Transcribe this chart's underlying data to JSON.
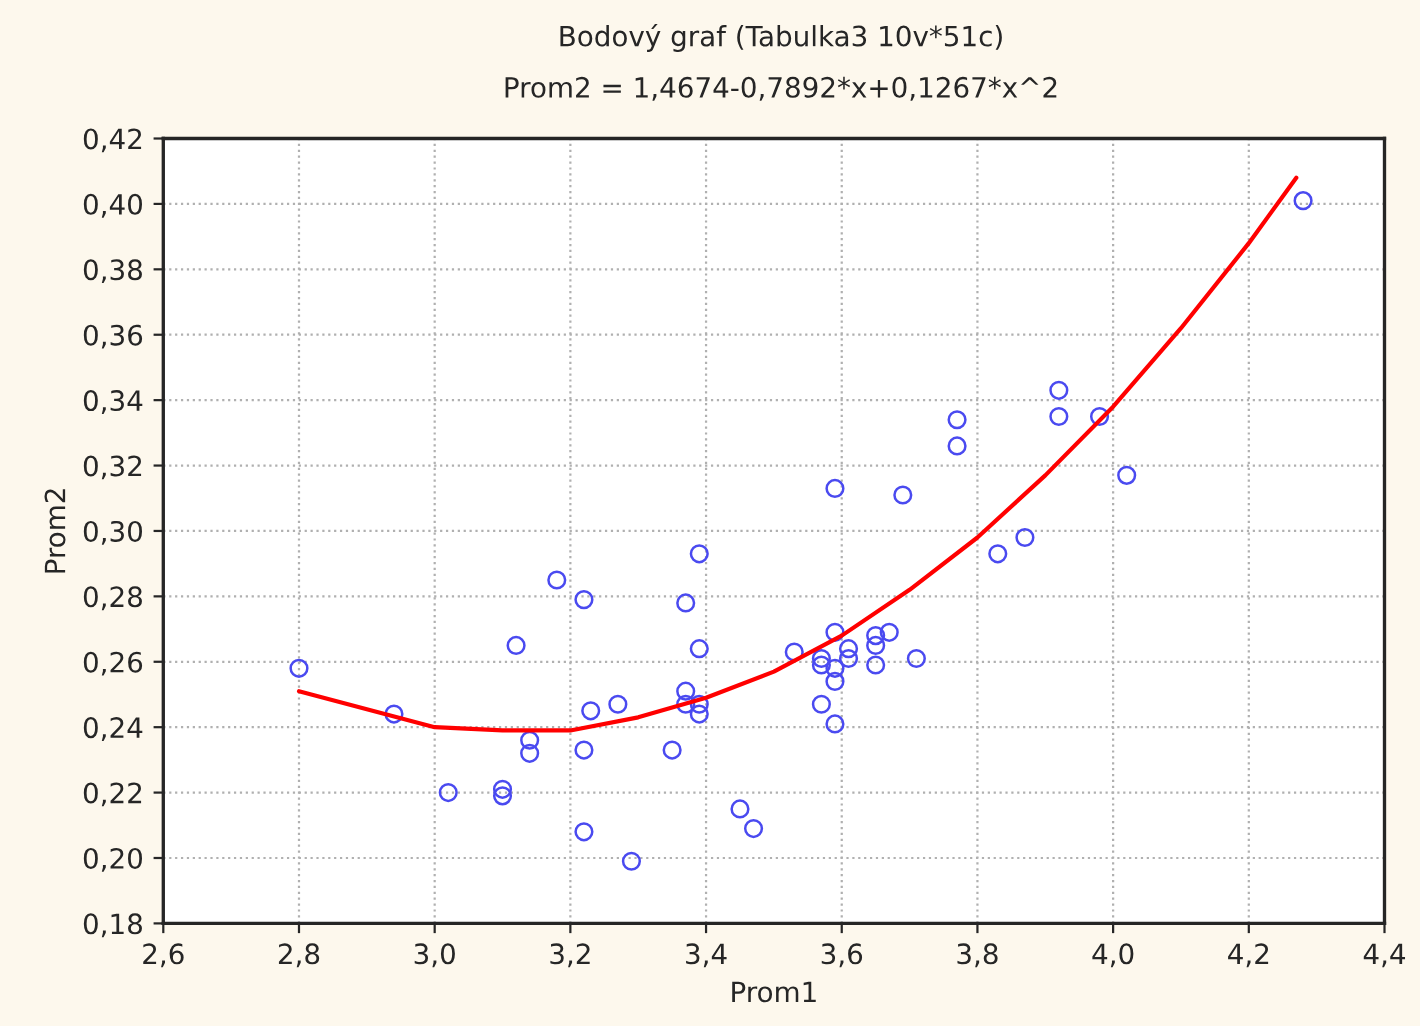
{
  "chart_data": {
    "type": "scatter",
    "title": "Bodový graf (Tabulka3 10v*51c)",
    "subtitle": "Prom2 = 1,4674-0,7892*x+0,1267*x^2",
    "xlabel": "Prom1",
    "ylabel": "Prom2",
    "series": [
      {
        "color": "#4a4af0",
        "marker": "circle",
        "x": [
          2.8,
          2.94,
          3.02,
          3.1,
          3.1,
          3.12,
          3.14,
          3.14,
          3.18,
          3.22,
          3.22,
          3.22,
          3.23,
          3.27,
          3.29,
          3.35,
          3.37,
          3.37,
          3.37,
          3.39,
          3.39,
          3.39,
          3.39,
          3.45,
          3.47,
          3.53,
          3.57,
          3.57,
          3.57,
          3.59,
          3.59,
          3.59,
          3.59,
          3.59,
          3.61,
          3.61,
          3.65,
          3.65,
          3.65,
          3.67,
          3.69,
          3.71,
          3.77,
          3.77,
          3.83,
          3.87,
          3.92,
          3.92,
          3.98,
          4.02,
          4.28
        ],
        "values": [
          0.258,
          0.244,
          0.22,
          0.221,
          0.219,
          0.265,
          0.236,
          0.232,
          0.285,
          0.279,
          0.233,
          0.208,
          0.245,
          0.247,
          0.199,
          0.233,
          0.278,
          0.251,
          0.247,
          0.293,
          0.264,
          0.247,
          0.244,
          0.215,
          0.209,
          0.263,
          0.261,
          0.259,
          0.247,
          0.313,
          0.269,
          0.258,
          0.254,
          0.241,
          0.264,
          0.261,
          0.268,
          0.265,
          0.259,
          0.269,
          0.311,
          0.261,
          0.334,
          0.326,
          0.293,
          0.298,
          0.343,
          0.335,
          0.335,
          0.317,
          0.401
        ]
      },
      {
        "type": "line",
        "color": "#ff0000",
        "line_style": "solid",
        "x": [
          2.8,
          3.0,
          3.1,
          3.2,
          3.3,
          3.4,
          3.5,
          3.6,
          3.7,
          3.8,
          3.9,
          4.0,
          4.1,
          4.2,
          4.27
        ],
        "values": [
          0.251,
          0.24,
          0.239,
          0.239,
          0.243,
          0.249,
          0.257,
          0.268,
          0.282,
          0.298,
          0.317,
          0.338,
          0.362,
          0.388,
          0.408
        ]
      }
    ],
    "xlim": [
      2.6,
      4.4
    ],
    "ylim": [
      0.18,
      0.42
    ],
    "xticks": [
      {
        "value": 2.6,
        "label": "2,6"
      },
      {
        "value": 2.8,
        "label": "2,8"
      },
      {
        "value": 3.0,
        "label": "3,0"
      },
      {
        "value": 3.2,
        "label": "3,2"
      },
      {
        "value": 3.4,
        "label": "3,4"
      },
      {
        "value": 3.6,
        "label": "3,6"
      },
      {
        "value": 3.8,
        "label": "3,8"
      },
      {
        "value": 4.0,
        "label": "4,0"
      },
      {
        "value": 4.2,
        "label": "4,2"
      },
      {
        "value": 4.4,
        "label": "4,4"
      }
    ],
    "yticks": [
      {
        "value": 0.18,
        "label": "0,18"
      },
      {
        "value": 0.2,
        "label": "0,20"
      },
      {
        "value": 0.22,
        "label": "0,22"
      },
      {
        "value": 0.24,
        "label": "0,24"
      },
      {
        "value": 0.26,
        "label": "0,26"
      },
      {
        "value": 0.28,
        "label": "0,28"
      },
      {
        "value": 0.3,
        "label": "0,30"
      },
      {
        "value": 0.32,
        "label": "0,32"
      },
      {
        "value": 0.34,
        "label": "0,34"
      },
      {
        "value": 0.36,
        "label": "0,36"
      },
      {
        "value": 0.38,
        "label": "0,38"
      },
      {
        "value": 0.4,
        "label": "0,40"
      },
      {
        "value": 0.42,
        "label": "0,42"
      }
    ],
    "grid": true
  }
}
